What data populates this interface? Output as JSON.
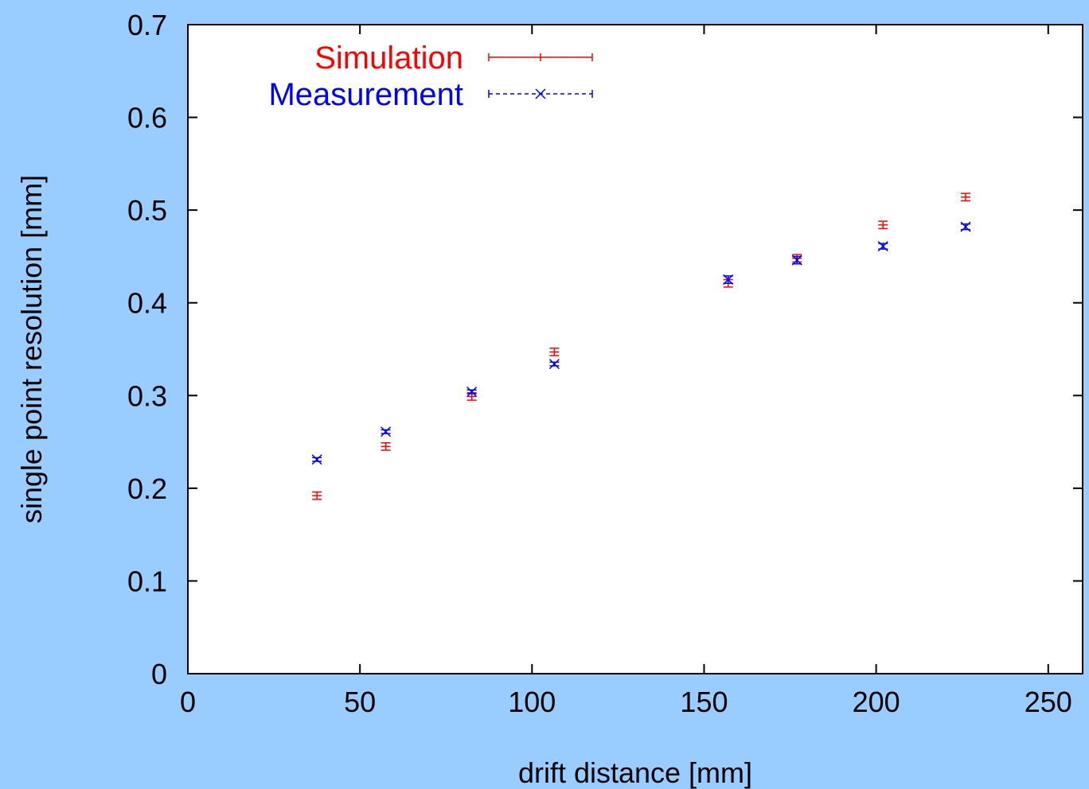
{
  "chart_data": {
    "type": "scatter",
    "xlabel": "drift distance [mm]",
    "ylabel": "single point resolution [mm]",
    "xlim": [
      0,
      260
    ],
    "ylim": [
      0,
      0.7
    ],
    "x_ticks": [
      "0",
      "50",
      "100",
      "150",
      "200",
      "250"
    ],
    "y_ticks": [
      "0",
      "0.1",
      "0.2",
      "0.3",
      "0.4",
      "0.5",
      "0.6",
      "0.7"
    ],
    "grid": false,
    "legend_position": "top-left",
    "series": [
      {
        "name": "Simulation",
        "color": "#ff0000",
        "marker": "plus-errorbar",
        "points": [
          {
            "x": 37.5,
            "y": 0.192,
            "err": 0.004
          },
          {
            "x": 57.5,
            "y": 0.245,
            "err": 0.004
          },
          {
            "x": 82.5,
            "y": 0.299,
            "err": 0.004
          },
          {
            "x": 106.5,
            "y": 0.347,
            "err": 0.004
          },
          {
            "x": 157.0,
            "y": 0.421,
            "err": 0.004
          },
          {
            "x": 177.0,
            "y": 0.448,
            "err": 0.004
          },
          {
            "x": 202.0,
            "y": 0.484,
            "err": 0.004
          },
          {
            "x": 226.0,
            "y": 0.514,
            "err": 0.004
          }
        ]
      },
      {
        "name": "Measurement",
        "color": "#0000ff",
        "marker": "x-errorbar",
        "points": [
          {
            "x": 37.5,
            "y": 0.231,
            "err": 0.002
          },
          {
            "x": 57.5,
            "y": 0.261,
            "err": 0.002
          },
          {
            "x": 82.5,
            "y": 0.304,
            "err": 0.002
          },
          {
            "x": 106.5,
            "y": 0.334,
            "err": 0.002
          },
          {
            "x": 157.0,
            "y": 0.425,
            "err": 0.004
          },
          {
            "x": 177.0,
            "y": 0.446,
            "err": 0.004
          },
          {
            "x": 202.0,
            "y": 0.461,
            "err": 0.003
          },
          {
            "x": 226.0,
            "y": 0.482,
            "err": 0.003
          }
        ]
      }
    ]
  }
}
